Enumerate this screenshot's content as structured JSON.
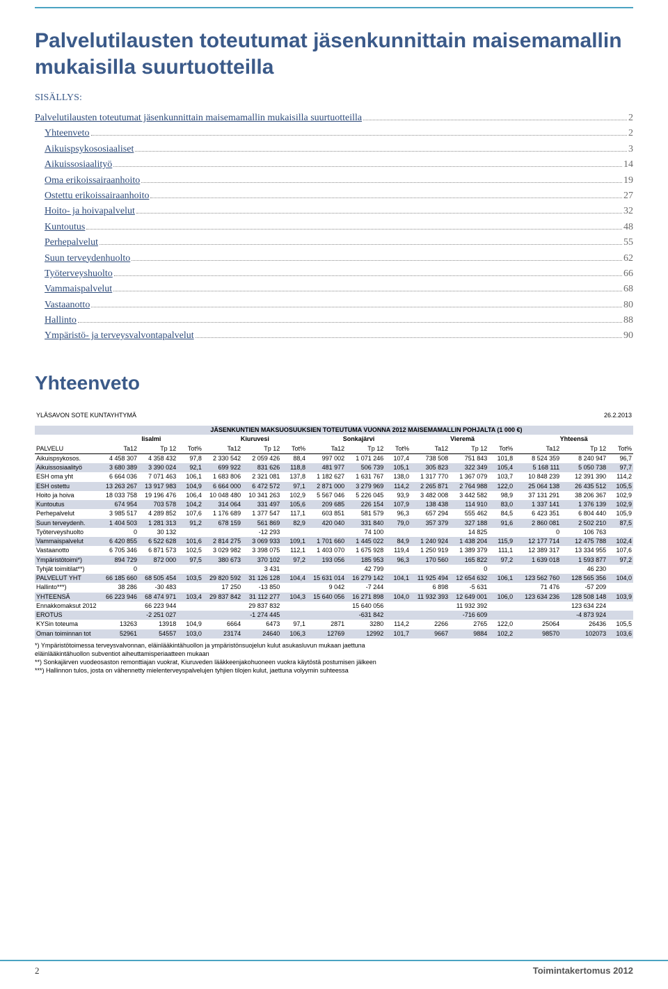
{
  "page": {
    "title": "Palvelutilausten toteutumat jäsenkunnittain maisemamallin mukaisilla suurtuotteilla",
    "toc_label": "SISÄLLYS:",
    "section_heading": "Yhteenveto",
    "footer_page": "2",
    "footer_right": "Toimintakertomus 2012"
  },
  "toc": [
    {
      "label": "Palvelutilausten toteutumat jäsenkunnittain maisemamallin mukaisilla suurtuotteilla",
      "page": "2"
    },
    {
      "label": "Yhteenveto",
      "page": "2"
    },
    {
      "label": "Aikuispsykososiaaliset",
      "page": "3"
    },
    {
      "label": "Aikuissosiaalityö",
      "page": "14"
    },
    {
      "label": "Oma erikoissairaanhoito",
      "page": "19"
    },
    {
      "label": "Ostettu erikoissairaanhoito",
      "page": "27"
    },
    {
      "label": "Hoito- ja hoivapalvelut",
      "page": "32"
    },
    {
      "label": "Kuntoutus",
      "page": "48"
    },
    {
      "label": "Perhepalvelut",
      "page": "55"
    },
    {
      "label": "Suun terveydenhuolto",
      "page": "62"
    },
    {
      "label": "Työterveyshuolto",
      "page": "66"
    },
    {
      "label": "Vammaispalvelut",
      "page": "68"
    },
    {
      "label": "Vastaanotto",
      "page": "80"
    },
    {
      "label": "Hallinto",
      "page": "88"
    },
    {
      "label": "Ympäristö- ja terveysvalvontapalvelut",
      "page": "90"
    }
  ],
  "table": {
    "org": "YLÄSAVON SOTE KUNTAYHTYMÄ",
    "date": "26.2.2013",
    "super_header": "JÄSENKUNTIEN MAKSUOSUUKSIEN TOTEUTUMA VUONNA 2012 MAISEMAMALLIN POHJALTA (1 000 €)",
    "groups": [
      "Iisalmi",
      "Kiuruvesi",
      "Sonkajärvi",
      "Vieremä",
      "Yhteensä"
    ],
    "palvelu_label": "PALVELU",
    "col_headers": [
      "Ta12",
      "Tp 12",
      "Tot%",
      "Ta12",
      "Tp 12",
      "Tot%",
      "Ta12",
      "Tp 12",
      "Tot%",
      "Ta12",
      "Tp 12",
      "Tot%",
      "Ta12",
      "Tp 12",
      "Tot%"
    ],
    "rows": [
      {
        "fill": false,
        "label": "Aikuispsykosos.",
        "v": [
          "4 458 307",
          "4 358 432",
          "97,8",
          "2 330 542",
          "2 059 426",
          "88,4",
          "997 002",
          "1 071 246",
          "107,4",
          "738 508",
          "751 843",
          "101,8",
          "8 524 359",
          "8 240 947",
          "96,7"
        ]
      },
      {
        "fill": true,
        "label": "Aikuissosiaalityö",
        "v": [
          "3 680 389",
          "3 390 024",
          "92,1",
          "699 922",
          "831 626",
          "118,8",
          "481 977",
          "506 739",
          "105,1",
          "305 823",
          "322 349",
          "105,4",
          "5 168 111",
          "5 050 738",
          "97,7"
        ]
      },
      {
        "fill": false,
        "label": "ESH oma yht",
        "v": [
          "6 664 036",
          "7 071 463",
          "106,1",
          "1 683 806",
          "2 321 081",
          "137,8",
          "1 182 627",
          "1 631 767",
          "138,0",
          "1 317 770",
          "1 367 079",
          "103,7",
          "10 848 239",
          "12 391 390",
          "114,2"
        ]
      },
      {
        "fill": true,
        "label": "ESH ostettu",
        "v": [
          "13 263 267",
          "13 917 983",
          "104,9",
          "6 664 000",
          "6 472 572",
          "97,1",
          "2 871 000",
          "3 279 969",
          "114,2",
          "2 265 871",
          "2 764 988",
          "122,0",
          "25 064 138",
          "26 435 512",
          "105,5"
        ]
      },
      {
        "fill": false,
        "label": "Hoito ja hoiva",
        "v": [
          "18 033 758",
          "19 196 476",
          "106,4",
          "10 048 480",
          "10 341 263",
          "102,9",
          "5 567 046",
          "5 226 045",
          "93,9",
          "3 482 008",
          "3 442 582",
          "98,9",
          "37 131 291",
          "38 206 367",
          "102,9"
        ]
      },
      {
        "fill": true,
        "label": "Kuntoutus",
        "v": [
          "674 954",
          "703 578",
          "104,2",
          "314 064",
          "331 497",
          "105,6",
          "209 685",
          "226 154",
          "107,9",
          "138 438",
          "114 910",
          "83,0",
          "1 337 141",
          "1 376 139",
          "102,9"
        ]
      },
      {
        "fill": false,
        "label": "Perhepalvelut",
        "v": [
          "3 985 517",
          "4 289 852",
          "107,6",
          "1 176 689",
          "1 377 547",
          "117,1",
          "603 851",
          "581 579",
          "96,3",
          "657 294",
          "555 462",
          "84,5",
          "6 423 351",
          "6 804 440",
          "105,9"
        ]
      },
      {
        "fill": true,
        "label": "Suun terveydenh.",
        "v": [
          "1 404 503",
          "1 281 313",
          "91,2",
          "678 159",
          "561 869",
          "82,9",
          "420 040",
          "331 840",
          "79,0",
          "357 379",
          "327 188",
          "91,6",
          "2 860 081",
          "2 502 210",
          "87,5"
        ]
      },
      {
        "fill": false,
        "label": "Työterveyshuolto",
        "v": [
          "0",
          "30 132",
          "",
          "",
          "-12 293",
          "",
          "",
          "74 100",
          "",
          "",
          "14 825",
          "",
          "0",
          "106 763",
          ""
        ]
      },
      {
        "fill": true,
        "label": "Vammaispalvelut",
        "v": [
          "6 420 855",
          "6 522 628",
          "101,6",
          "2 814 275",
          "3 069 933",
          "109,1",
          "1 701 660",
          "1 445 022",
          "84,9",
          "1 240 924",
          "1 438 204",
          "115,9",
          "12 177 714",
          "12 475 788",
          "102,4"
        ]
      },
      {
        "fill": false,
        "label": "Vastaanotto",
        "v": [
          "6 705 346",
          "6 871 573",
          "102,5",
          "3 029 982",
          "3 398 075",
          "112,1",
          "1 403 070",
          "1 675 928",
          "119,4",
          "1 250 919",
          "1 389 379",
          "111,1",
          "12 389 317",
          "13 334 955",
          "107,6"
        ]
      },
      {
        "fill": true,
        "label": "Ympäristötoimi*)",
        "v": [
          "894 729",
          "872 000",
          "97,5",
          "380 673",
          "370 102",
          "97,2",
          "193 056",
          "185 953",
          "96,3",
          "170 560",
          "165 822",
          "97,2",
          "1 639 018",
          "1 593 877",
          "97,2"
        ]
      },
      {
        "fill": false,
        "label": "Tyhjät toimitilat**)",
        "v": [
          "0",
          "",
          "",
          "",
          "3 431",
          "",
          "",
          "42 799",
          "",
          "",
          "0",
          "",
          "",
          "46 230",
          ""
        ]
      },
      {
        "fill": true,
        "label": "PALVELUT YHT",
        "v": [
          "66 185 660",
          "68 505 454",
          "103,5",
          "29 820 592",
          "31 126 128",
          "104,4",
          "15 631 014",
          "16 279 142",
          "104,1",
          "11 925 494",
          "12 654 632",
          "106,1",
          "123 562 760",
          "128 565 356",
          "104,0"
        ]
      },
      {
        "fill": false,
        "label": "Hallinto***)",
        "v": [
          "38 286",
          "-30 483",
          "",
          "17 250",
          "-13 850",
          "",
          "9 042",
          "-7 244",
          "",
          "6 898",
          "-5 631",
          "",
          "71 476",
          "-57 209",
          ""
        ]
      },
      {
        "fill": true,
        "label": "YHTEENSÄ",
        "v": [
          "66 223 946",
          "68 474 971",
          "103,4",
          "29 837 842",
          "31 112 277",
          "104,3",
          "15 640 056",
          "16 271 898",
          "104,0",
          "11 932 393",
          "12 649 001",
          "106,0",
          "123 634 236",
          "128 508 148",
          "103,9"
        ]
      },
      {
        "fill": false,
        "label": "Ennakkomaksut 2012",
        "v": [
          "",
          "66 223 944",
          "",
          "",
          "29 837 832",
          "",
          "",
          "15 640 056",
          "",
          "",
          "11 932 392",
          "",
          "",
          "123 634 224",
          ""
        ]
      },
      {
        "fill": true,
        "label": "EROTUS",
        "v": [
          "",
          "-2 251 027",
          "",
          "",
          "-1 274 445",
          "",
          "",
          "-631 842",
          "",
          "",
          "-716 609",
          "",
          "",
          "-4 873 924",
          ""
        ]
      },
      {
        "fill": false,
        "label": "KYSin toteuma",
        "v": [
          "13263",
          "13918",
          "104,9",
          "6664",
          "6473",
          "97,1",
          "2871",
          "3280",
          "114,2",
          "2266",
          "2765",
          "122,0",
          "25064",
          "26436",
          "105,5"
        ]
      },
      {
        "fill": true,
        "label": "Oman toiminnan tot",
        "v": [
          "52961",
          "54557",
          "103,0",
          "23174",
          "24640",
          "106,3",
          "12769",
          "12992",
          "101,7",
          "9667",
          "9884",
          "102,2",
          "98570",
          "102073",
          "103,6"
        ]
      }
    ],
    "footnotes": [
      "*) Ympäristötoimessa terveysvalvonnan, eläinlääkintähuollon ja ympäristönsuojelun kulut asukasluvun mukaan jaettuna",
      "eläinlääkintähuollon subventiot aiheuttamisperiaatteen mukaan",
      "**) Sonkajärven vuodeosaston remonttiajan vuokrat, Kiuruveden lääkkeenjakohuoneen vuokra käytöstä postumisen jälkeen",
      "***) Hallinnon tulos, josta on vähennetty mielenterveyspalvelujen tyhjien tilojen kulut, jaettuna volyymin suhteessa"
    ]
  }
}
